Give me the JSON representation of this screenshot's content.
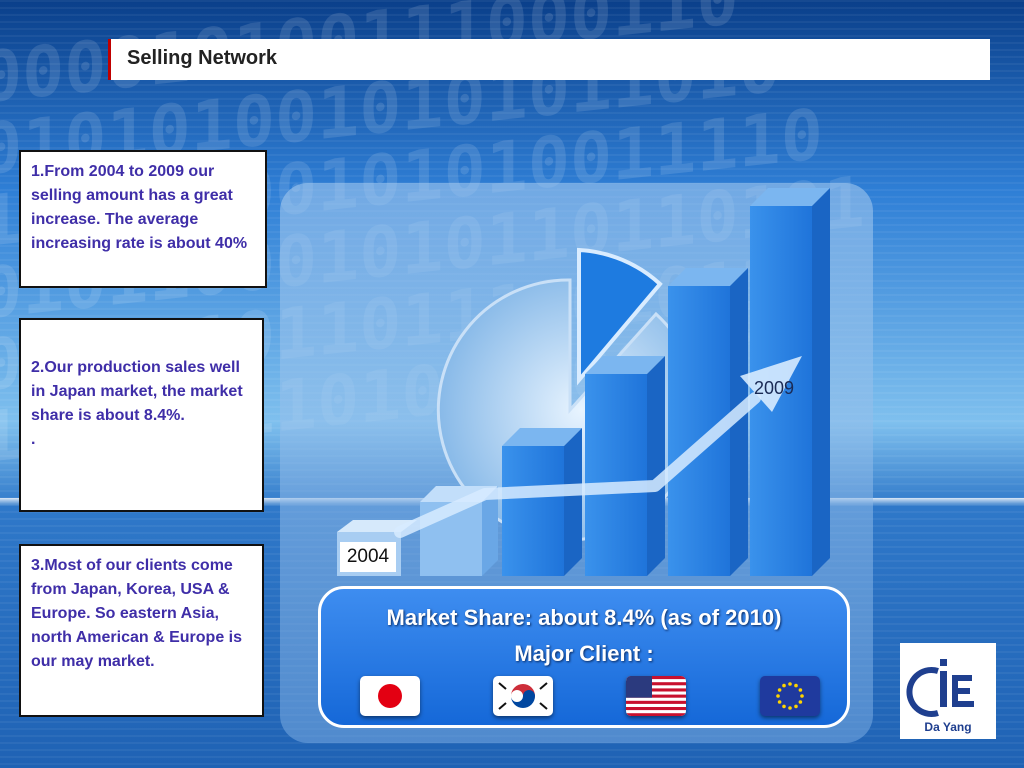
{
  "header": {
    "title": "Selling Network"
  },
  "notes": [
    "1.From 2004 to 2009 our selling amount has a great increase. The average  increasing rate is about 40%",
    "2.Our production sales well in Japan market, the market share is about 8.4%.",
    ".",
    "3.Most of our clients come from Japan, Korea, USA & Europe. So eastern Asia, north American & Europe is our may market."
  ],
  "chart": {
    "start_label": "2004",
    "end_label": "2009"
  },
  "market": {
    "share_line": "Market Share:  about 8.4% (as of 2010)",
    "client_line": "Major  Client :",
    "flags": [
      "japan-flag",
      "korea-flag",
      "usa-flag",
      "eu-flag"
    ]
  },
  "logo": {
    "name": "Da Yang"
  },
  "colors": {
    "title_accent": "#c00000",
    "note_text": "#3f2ea8",
    "panel_blue": "#1568d8"
  }
}
